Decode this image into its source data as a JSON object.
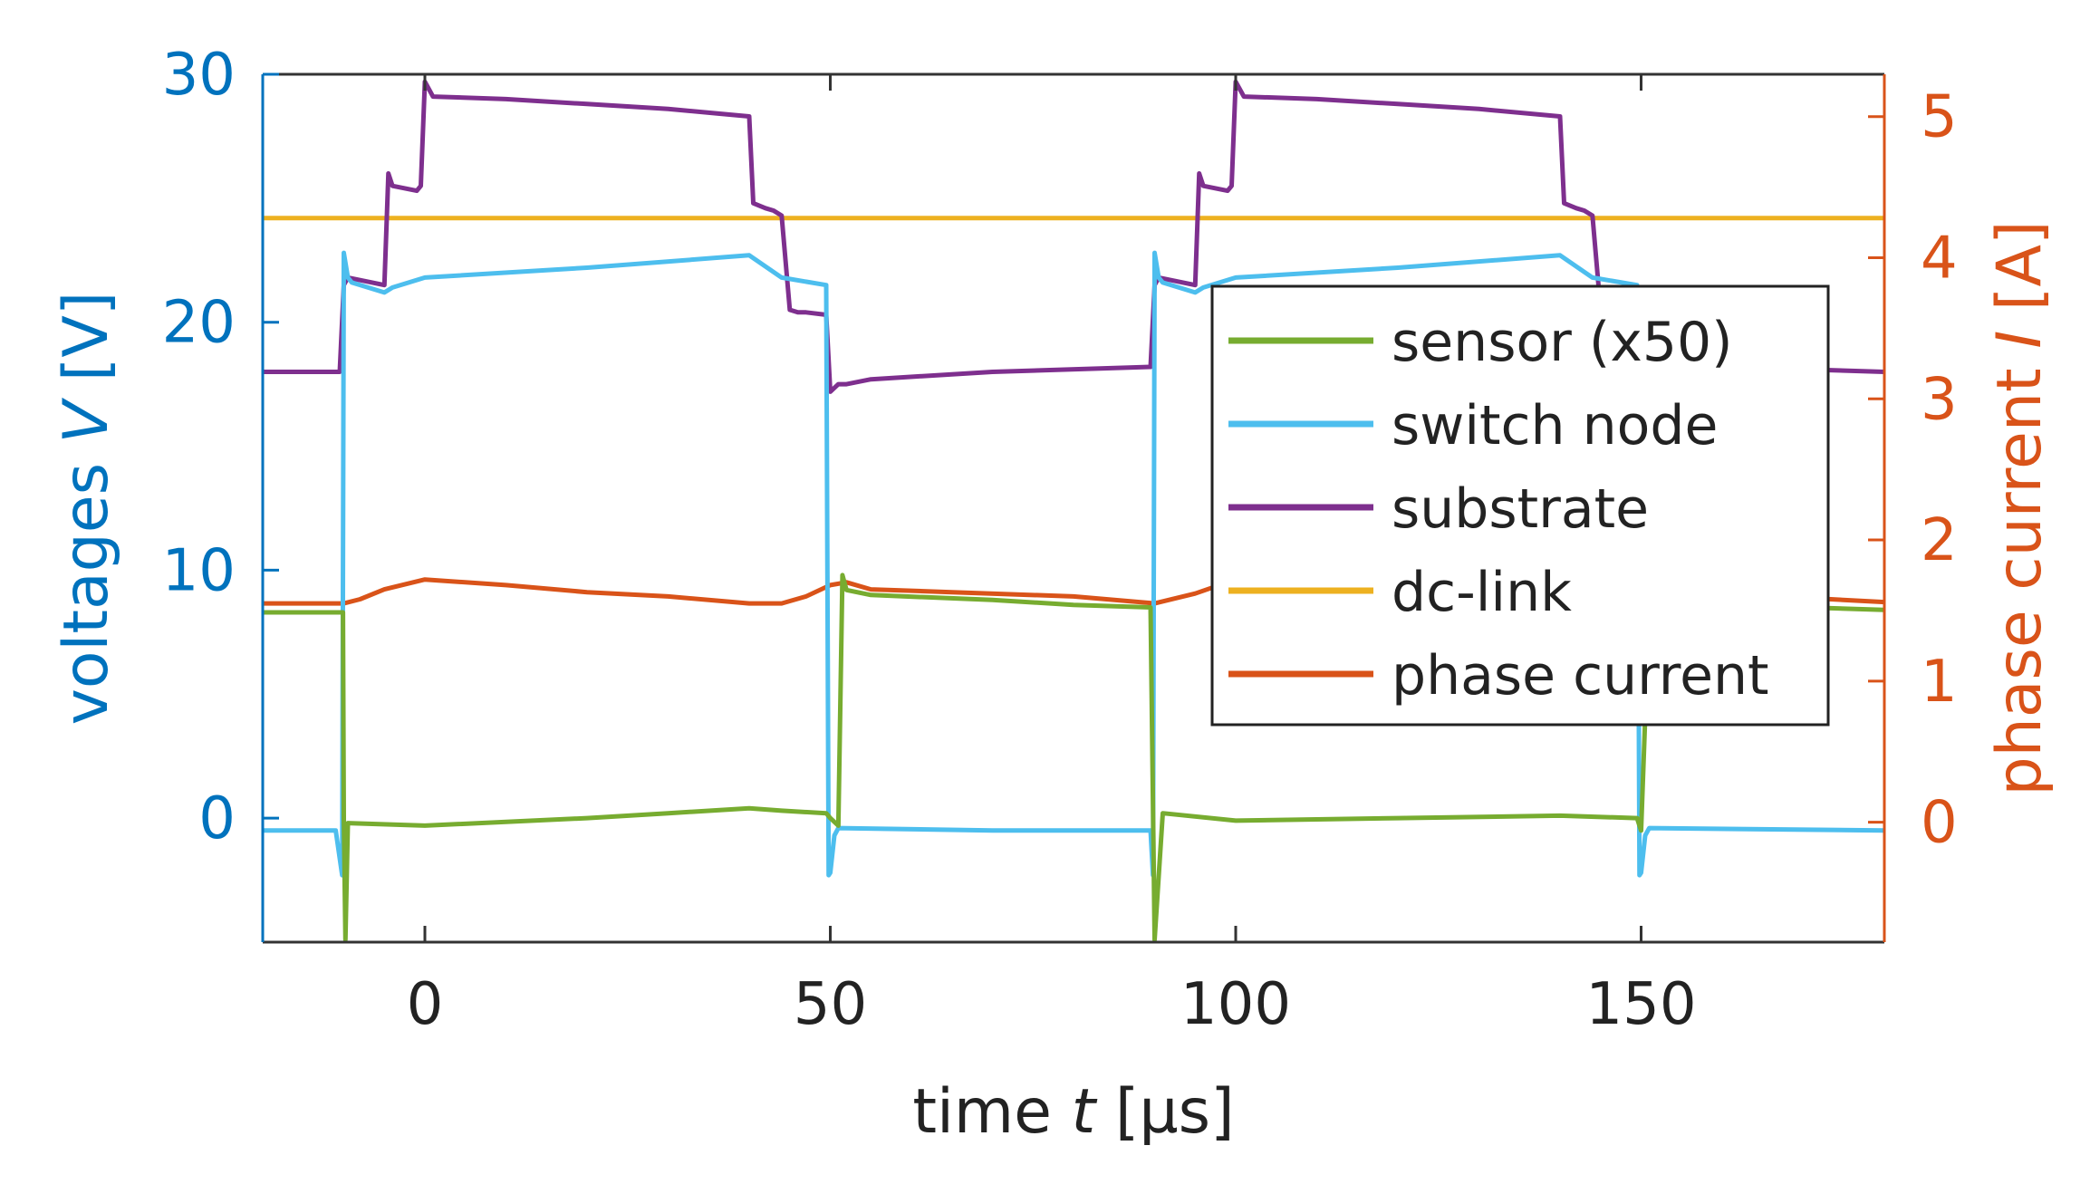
{
  "chart_data": {
    "type": "line",
    "title": "",
    "xlabel": "time t [µs]",
    "xlabel_parts": [
      "time ",
      "t",
      " [µs]"
    ],
    "ylabel_left": "voltages V [V]",
    "ylabel_left_parts": [
      "voltages ",
      "V",
      " [V]"
    ],
    "ylabel_right": "phase current I [A]",
    "ylabel_right_parts": [
      "phase current ",
      "I",
      " [A]"
    ],
    "xlim": [
      -20,
      180
    ],
    "ylim_left": [
      -5,
      30
    ],
    "ylim_right": [
      -0.85,
      5.3
    ],
    "x_ticks": [
      0,
      50,
      100,
      150
    ],
    "x_tick_labels": [
      "0",
      "50",
      "100",
      "150"
    ],
    "y_left_ticks": [
      0,
      10,
      20,
      30
    ],
    "y_left_tick_labels": [
      "0",
      "10",
      "20",
      "30"
    ],
    "y_right_ticks": [
      0,
      1,
      2,
      3,
      4,
      5
    ],
    "y_right_tick_labels": [
      "0",
      "1",
      "2",
      "3",
      "4",
      "5"
    ],
    "grid": false,
    "legend_position": "center-right",
    "colors": {
      "left_axis": "#0072BD",
      "right_axis": "#D95319",
      "box": "#333333"
    },
    "series": [
      {
        "name": "sensor (x50)",
        "axis": "left",
        "color": "#77AC30",
        "x": [
          -20,
          -10.1,
          -10,
          -9.8,
          -9.5,
          0,
          20,
          30,
          40,
          44,
          49.5,
          50,
          51,
          51.5,
          52,
          55,
          70,
          80,
          89.5,
          89.8,
          90,
          91,
          100,
          120,
          140,
          149.5,
          150,
          151,
          152,
          160,
          180
        ],
        "y": [
          8.3,
          8.3,
          0,
          -4.9,
          -0.2,
          -0.3,
          0,
          0.2,
          0.4,
          0.3,
          0.2,
          0,
          -0.3,
          9.8,
          9.2,
          9,
          8.8,
          8.6,
          8.5,
          0.5,
          -4.9,
          0.2,
          -0.1,
          0,
          0.1,
          0,
          -0.5,
          8.6,
          8.6,
          8.6,
          8.4
        ]
      },
      {
        "name": "switch node",
        "axis": "left",
        "color": "#4DBEEE",
        "x": [
          -20,
          -11,
          -10.2,
          -10,
          -9.5,
          -9,
          -5,
          -4,
          0,
          20,
          40,
          44,
          49.5,
          49.8,
          50,
          50.5,
          51,
          70,
          89.5,
          89.8,
          90,
          90.5,
          91,
          95,
          96,
          100,
          120,
          140,
          144,
          149.5,
          149.8,
          150,
          150.5,
          151,
          180
        ],
        "y": [
          -0.5,
          -0.5,
          -2.3,
          22.8,
          21.8,
          21.6,
          21.2,
          21.4,
          21.8,
          22.2,
          22.7,
          21.8,
          21.5,
          -2.3,
          -2.2,
          -0.7,
          -0.4,
          -0.5,
          -0.5,
          -2.3,
          22.8,
          21.8,
          21.6,
          21.2,
          21.4,
          21.8,
          22.2,
          22.7,
          21.8,
          21.5,
          -2.3,
          -2.2,
          -0.7,
          -0.4,
          -0.5
        ]
      },
      {
        "name": "substrate",
        "axis": "left",
        "color": "#7E2F8E",
        "x": [
          -20,
          -10.5,
          -10,
          -9.5,
          -5,
          -4.5,
          -4,
          -1,
          -0.5,
          0,
          1,
          10,
          20,
          30,
          40,
          40.5,
          42,
          43,
          44,
          45,
          46,
          47,
          49.5,
          50,
          51,
          52,
          55,
          70,
          89.5,
          90,
          90.5,
          95,
          95.5,
          96,
          99,
          99.5,
          100,
          101,
          110,
          120,
          130,
          140,
          140.5,
          142,
          143,
          144,
          145,
          146,
          160,
          170,
          180
        ],
        "y": [
          18,
          18,
          21.5,
          21.8,
          21.5,
          26,
          25.5,
          25.3,
          25.5,
          29.7,
          29.1,
          29,
          28.8,
          28.6,
          28.3,
          24.8,
          24.6,
          24.5,
          24.3,
          20.5,
          20.4,
          20.4,
          20.3,
          17.2,
          17.5,
          17.5,
          17.7,
          18,
          18.2,
          21.5,
          21.8,
          21.5,
          26,
          25.5,
          25.3,
          25.5,
          29.7,
          29.1,
          29,
          28.8,
          28.6,
          28.3,
          24.8,
          24.6,
          24.5,
          24.3,
          20.5,
          20.4,
          18.2,
          18.1,
          18
        ]
      },
      {
        "name": "dc-link",
        "axis": "left",
        "color": "#EDB120",
        "x": [
          -20,
          180
        ],
        "y": [
          24.2,
          24.2
        ]
      },
      {
        "name": "phase current",
        "axis": "right",
        "color": "#D95319",
        "x": [
          -20,
          -10,
          -8,
          -5,
          0,
          10,
          20,
          30,
          40,
          44,
          47,
          50,
          52,
          55,
          65,
          80,
          90,
          95,
          100,
          110,
          120,
          130,
          140,
          144,
          147,
          150,
          152,
          160,
          180
        ],
        "y": [
          1.55,
          1.55,
          1.58,
          1.65,
          1.72,
          1.68,
          1.63,
          1.6,
          1.55,
          1.55,
          1.6,
          1.68,
          1.7,
          1.65,
          1.63,
          1.6,
          1.55,
          1.62,
          1.72,
          1.68,
          1.63,
          1.6,
          1.55,
          1.55,
          1.6,
          1.68,
          1.7,
          1.62,
          1.56
        ]
      }
    ]
  }
}
